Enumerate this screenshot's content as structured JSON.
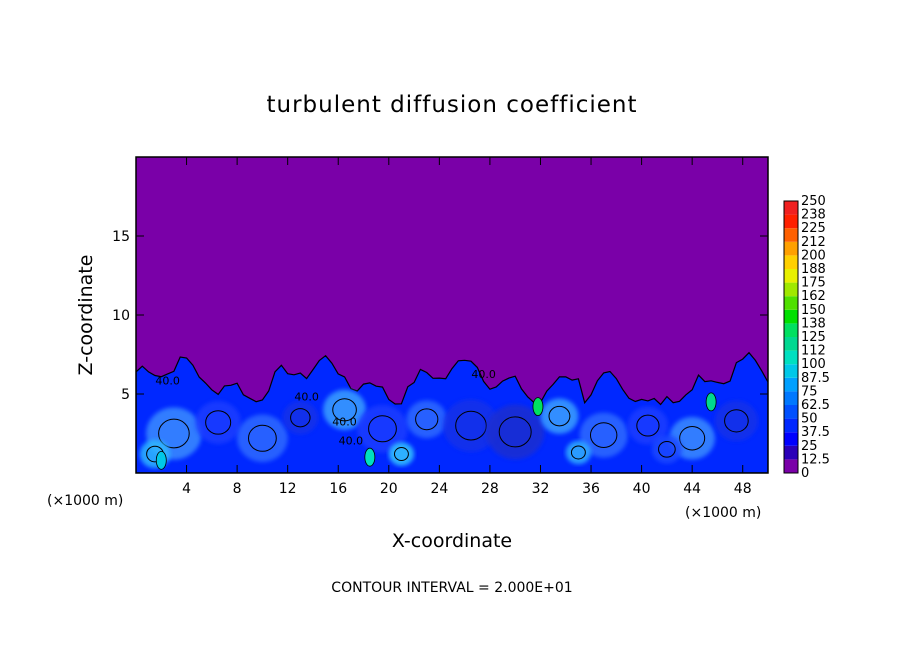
{
  "chart_data": {
    "type": "heatmap",
    "title": "turbulent diffusion coefficient",
    "xlabel": "X-coordinate",
    "ylabel": "Z-coordinate",
    "x_unit": "(×1000 m)",
    "z_unit": "(×1000 m)",
    "xlim": [
      0,
      50
    ],
    "ylim": [
      0,
      20
    ],
    "x_ticks": [
      4,
      8,
      12,
      16,
      20,
      24,
      28,
      32,
      36,
      40,
      44,
      48
    ],
    "y_ticks": [
      5,
      10,
      15
    ],
    "colorbar": {
      "levels": [
        "0",
        "12.5",
        "25",
        "37.5",
        "50",
        "62.5",
        "75",
        "87.5",
        "100",
        "112",
        "125",
        "138",
        "150",
        "162",
        "175",
        "188",
        "200",
        "212",
        "225",
        "238",
        "250"
      ],
      "colors": [
        "#7a00a8",
        "#2a00b8",
        "#0000ff",
        "#0028ff",
        "#0050ff",
        "#0078ff",
        "#00a0ff",
        "#00c8e8",
        "#00e0c0",
        "#00d890",
        "#00e060",
        "#00e000",
        "#50e000",
        "#a0e800",
        "#e8f000",
        "#ffd000",
        "#ffa000",
        "#ff6000",
        "#ff2000",
        "#f02020",
        "#f08080"
      ]
    },
    "contour_labels": [
      "40.0",
      "40.0",
      "40.0",
      "40.0",
      "40.0"
    ],
    "contour_interval": "CONTOUR INTERVAL = 2.000E+01",
    "turbulent_layer_top_km": 6.5,
    "background_value": 0
  },
  "colors": {
    "background_field": "#7a00a8",
    "frame": "#000000"
  }
}
